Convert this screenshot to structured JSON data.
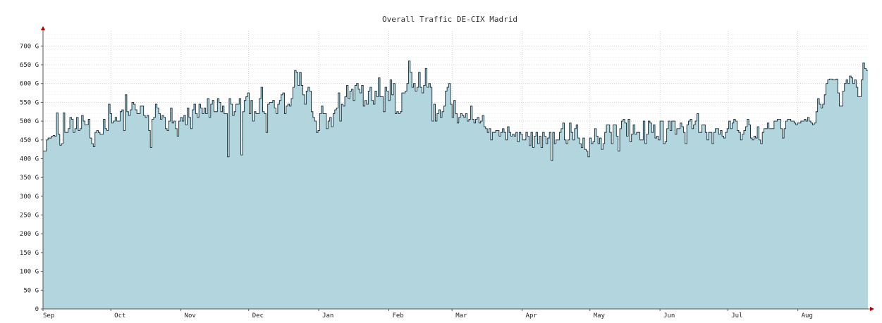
{
  "chart_data": {
    "type": "area",
    "title": "Overall Traffic DE-CIX Madrid",
    "xlabel": "",
    "ylabel": "",
    "y_unit": "G",
    "ylim": [
      0,
      740
    ],
    "grid": true,
    "legend": "none",
    "y_ticks": [
      {
        "value": 0,
        "label": "0"
      },
      {
        "value": 50,
        "label": "50 G"
      },
      {
        "value": 100,
        "label": "100 G"
      },
      {
        "value": 150,
        "label": "150 G"
      },
      {
        "value": 200,
        "label": "200 G"
      },
      {
        "value": 250,
        "label": "250 G"
      },
      {
        "value": 300,
        "label": "300 G"
      },
      {
        "value": 350,
        "label": "350 G"
      },
      {
        "value": 400,
        "label": "400 G"
      },
      {
        "value": 450,
        "label": "450 G"
      },
      {
        "value": 500,
        "label": "500 G"
      },
      {
        "value": 550,
        "label": "550 G"
      },
      {
        "value": 600,
        "label": "600 G"
      },
      {
        "value": 650,
        "label": "650 G"
      },
      {
        "value": 700,
        "label": "700 G"
      }
    ],
    "x_axis": {
      "start": "Sep 1",
      "days": 365,
      "months": [
        {
          "label": "Sep",
          "day": 0
        },
        {
          "label": "Oct",
          "day": 30
        },
        {
          "label": "Nov",
          "day": 61
        },
        {
          "label": "Dec",
          "day": 91
        },
        {
          "label": "Jan",
          "day": 122
        },
        {
          "label": "Feb",
          "day": 153
        },
        {
          "label": "Mar",
          "day": 181
        },
        {
          "label": "Apr",
          "day": 212
        },
        {
          "label": "May",
          "day": 242
        },
        {
          "label": "Jun",
          "day": 273
        },
        {
          "label": "Jul",
          "day": 303
        },
        {
          "label": "Aug",
          "day": 334
        }
      ]
    },
    "series": [
      {
        "unit": "G",
        "color": "#b3d5de",
        "line_color": "#0d2a38",
        "values": [
          420,
          420,
          450,
          455,
          455,
          460,
          462,
          460,
          522,
          465,
          436,
          440,
          522,
          470,
          470,
          480,
          510,
          505,
          470,
          480,
          510,
          475,
          480,
          515,
          500,
          490,
          490,
          505,
          455,
          440,
          432,
          470,
          475,
          470,
          465,
          465,
          505,
          480,
          475,
          545,
          520,
          495,
          500,
          510,
          500,
          500,
          525,
          530,
          475,
          570,
          525,
          515,
          530,
          550,
          545,
          530,
          520,
          520,
          540,
          540,
          515,
          510,
          515,
          475,
          430,
          505,
          510,
          545,
          535,
          520,
          505,
          515,
          510,
          480,
          475,
          500,
          535,
          495,
          500,
          480,
          460,
          500,
          510,
          500,
          515,
          490,
          535,
          510,
          480,
          530,
          545,
          520,
          510,
          545,
          535,
          520,
          535,
          520,
          560,
          510,
          545,
          555,
          525,
          525,
          560,
          550,
          525,
          540,
          520,
          520,
          405,
          560,
          545,
          515,
          525,
          545,
          545,
          560,
          410,
          525,
          555,
          565,
          575,
          520,
          555,
          500,
          525,
          520,
          520,
          560,
          590,
          525,
          520,
          470,
          545,
          550,
          550,
          555,
          535,
          520,
          545,
          555,
          570,
          575,
          520,
          540,
          545,
          540,
          560,
          590,
          635,
          630,
          595,
          630,
          595,
          570,
          545,
          580,
          590,
          580,
          525,
          510,
          500,
          470,
          475,
          520,
          540,
          520,
          520,
          480,
          500,
          510,
          485,
          520,
          530,
          535,
          575,
          500,
          545,
          540,
          565,
          595,
          560,
          580,
          585,
          555,
          595,
          600,
          585,
          575,
          595,
          540,
          555,
          545,
          580,
          590,
          555,
          545,
          580,
          565,
          615,
          565,
          565,
          525,
          590,
          580,
          555,
          610,
          570,
          600,
          520,
          525,
          520,
          525,
          575,
          575,
          580,
          600,
          660,
          630,
          590,
          600,
          580,
          590,
          630,
          590,
          575,
          595,
          640,
          590,
          600,
          590,
          500,
          545,
          500,
          520,
          530,
          510,
          525,
          540,
          580,
          590,
          600,
          545,
          510,
          555,
          520,
          495,
          510,
          520,
          515,
          510,
          520,
          500,
          505,
          540,
          505,
          495,
          505,
          510,
          495,
          500,
          515,
          485,
          480,
          470,
          480,
          450,
          470,
          470,
          475,
          475,
          460,
          470,
          480,
          470,
          450,
          485,
          470,
          460,
          465,
          460,
          470,
          445,
          470,
          465,
          450,
          450,
          470,
          460,
          435,
          470,
          430,
          460,
          470,
          440,
          460,
          430,
          470,
          460,
          440,
          455,
          470,
          395,
          470,
          440,
          450,
          450,
          470,
          480,
          495,
          450,
          440,
          450,
          495,
          470,
          450,
          480,
          490,
          455,
          440,
          430,
          455,
          425,
          420,
          405,
          455,
          440,
          445,
          480,
          460,
          440,
          455,
          425,
          440,
          470,
          490,
          490,
          470,
          440,
          490,
          490,
          460,
          420,
          480,
          500,
          505,
          495,
          460,
          505,
          445,
          465,
          490,
          465,
          470,
          470,
          450,
          450,
          500,
          440,
          465,
          500,
          495,
          470,
          490,
          455,
          460,
          450,
          500,
          500,
          440,
          445,
          480,
          500,
          475,
          500,
          500,
          465,
          480,
          480,
          495,
          485,
          470,
          440,
          490,
          500,
          505,
          480,
          490,
          500,
          520,
          470,
          470,
          490,
          490,
          470,
          450,
          470,
          470,
          440,
          470,
          480,
          480,
          465,
          475,
          460,
          455,
          470,
          480,
          500,
          480,
          495,
          505,
          500,
          475,
          470,
          450,
          465,
          475,
          485,
          505,
          490,
          455,
          450,
          460,
          455,
          485,
          450,
          440,
          470,
          480,
          480,
          495,
          480,
          480,
          480,
          500,
          500,
          505,
          505,
          480,
          455,
          480,
          500,
          505,
          505,
          500,
          500,
          495,
          490,
          495,
          495,
          500,
          500,
          505,
          500,
          510,
          500,
          495,
          490,
          495,
          525,
          560,
          545,
          535,
          545,
          570,
          600,
          610,
          612,
          612,
          610,
          610,
          612,
          575,
          540,
          540,
          580,
          600,
          610,
          600,
          620,
          615,
          600,
          610,
          590,
          565,
          565,
          610,
          655,
          640,
          635
        ]
      }
    ]
  }
}
